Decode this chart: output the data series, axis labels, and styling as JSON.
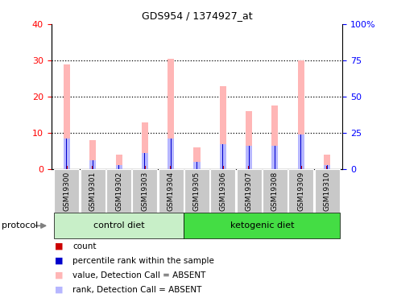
{
  "title": "GDS954 / 1374927_at",
  "samples": [
    "GSM19300",
    "GSM19301",
    "GSM19302",
    "GSM19303",
    "GSM19304",
    "GSM19305",
    "GSM19306",
    "GSM19307",
    "GSM19308",
    "GSM19309",
    "GSM19310"
  ],
  "absent_value_bars": [
    29,
    8,
    4,
    13,
    30.5,
    6,
    23,
    16,
    17.5,
    30,
    4
  ],
  "absent_rank_bars": [
    8.5,
    2.5,
    1.2,
    4.5,
    8.5,
    2.0,
    7.0,
    6.5,
    6.5,
    9.5,
    1.2
  ],
  "count_values": [
    1,
    1,
    1,
    1,
    1,
    1,
    1,
    1,
    1,
    1,
    1
  ],
  "rank_values": [
    8.5,
    2.5,
    1.2,
    4.5,
    8.5,
    2.0,
    7.0,
    6.5,
    6.5,
    9.5,
    1.2
  ],
  "ylim_left": [
    0,
    40
  ],
  "ylim_right": [
    0,
    100
  ],
  "yticks_left": [
    0,
    10,
    20,
    30,
    40
  ],
  "yticks_right": [
    0,
    25,
    50,
    75,
    100
  ],
  "ytick_labels_right": [
    "0",
    "25",
    "50",
    "75",
    "100%"
  ],
  "absent_value_color": "#FFB6B6",
  "absent_rank_color": "#B6B6FF",
  "count_color": "#CC0000",
  "rank_color": "#0000CC",
  "control_bg": "#C8EFC8",
  "ketogenic_bg": "#44DD44",
  "sample_box_bg": "#C8C8C8",
  "legend_items": [
    "count",
    "percentile rank within the sample",
    "value, Detection Call = ABSENT",
    "rank, Detection Call = ABSENT"
  ],
  "legend_colors": [
    "#CC0000",
    "#0000CC",
    "#FFB6B6",
    "#B6B6FF"
  ],
  "control_diet_label": "control diet",
  "ketogenic_diet_label": "ketogenic diet",
  "protocol_label": "protocol"
}
